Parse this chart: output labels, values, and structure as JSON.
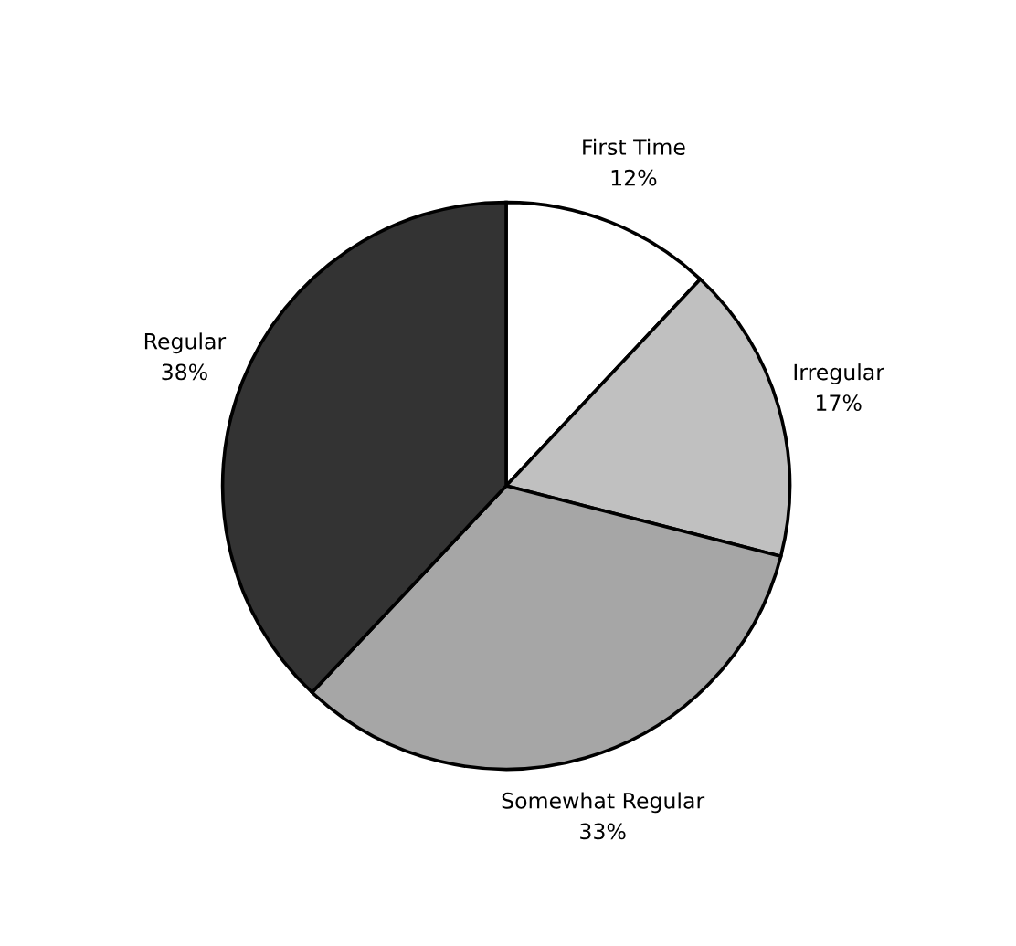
{
  "chart_data": {
    "type": "pie",
    "categories": [
      "First Time",
      "Irregular",
      "Somewhat Regular",
      "Regular"
    ],
    "values": [
      12,
      17,
      33,
      38
    ],
    "value_labels": [
      "12%",
      "17%",
      "33%",
      "38%"
    ],
    "colors": [
      "#ffffff",
      "#c0c0c0",
      "#a6a6a6",
      "#333333"
    ],
    "legend": false
  }
}
